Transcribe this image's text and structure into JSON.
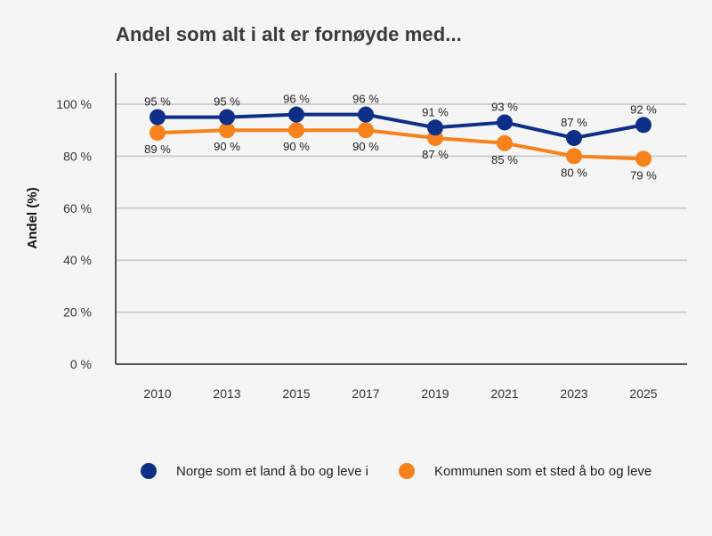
{
  "chart_data": {
    "type": "line",
    "title": "Andel som alt i alt er fornøyde med...",
    "ylabel": "Andel (%)",
    "xlabel": "",
    "ylim": [
      0,
      100
    ],
    "yticks": [
      0,
      20,
      40,
      60,
      80,
      100
    ],
    "ytick_suffix": " %",
    "categories": [
      "2010",
      "2013",
      "2015",
      "2017",
      "2019",
      "2021",
      "2023",
      "2025"
    ],
    "grid": "horizontal",
    "legend_position": "bottom",
    "series": [
      {
        "name": "Norge som et land å bo og leve i",
        "color": "#0d2f87",
        "values": [
          95,
          95,
          96,
          96,
          91,
          93,
          87,
          92
        ],
        "data_labels": [
          "95 %",
          "95 %",
          "96 %",
          "96 %",
          "91 %",
          "93 %",
          "87 %",
          "92 %"
        ],
        "label_position": "above"
      },
      {
        "name": "Kommunen som et sted å bo og leve",
        "color": "#f7821b",
        "values": [
          89,
          90,
          90,
          90,
          87,
          85,
          80,
          79
        ],
        "data_labels": [
          "89 %",
          "90 %",
          "90 %",
          "90 %",
          "87 %",
          "85 %",
          "80 %",
          "79 %"
        ],
        "label_position": "below"
      }
    ]
  }
}
